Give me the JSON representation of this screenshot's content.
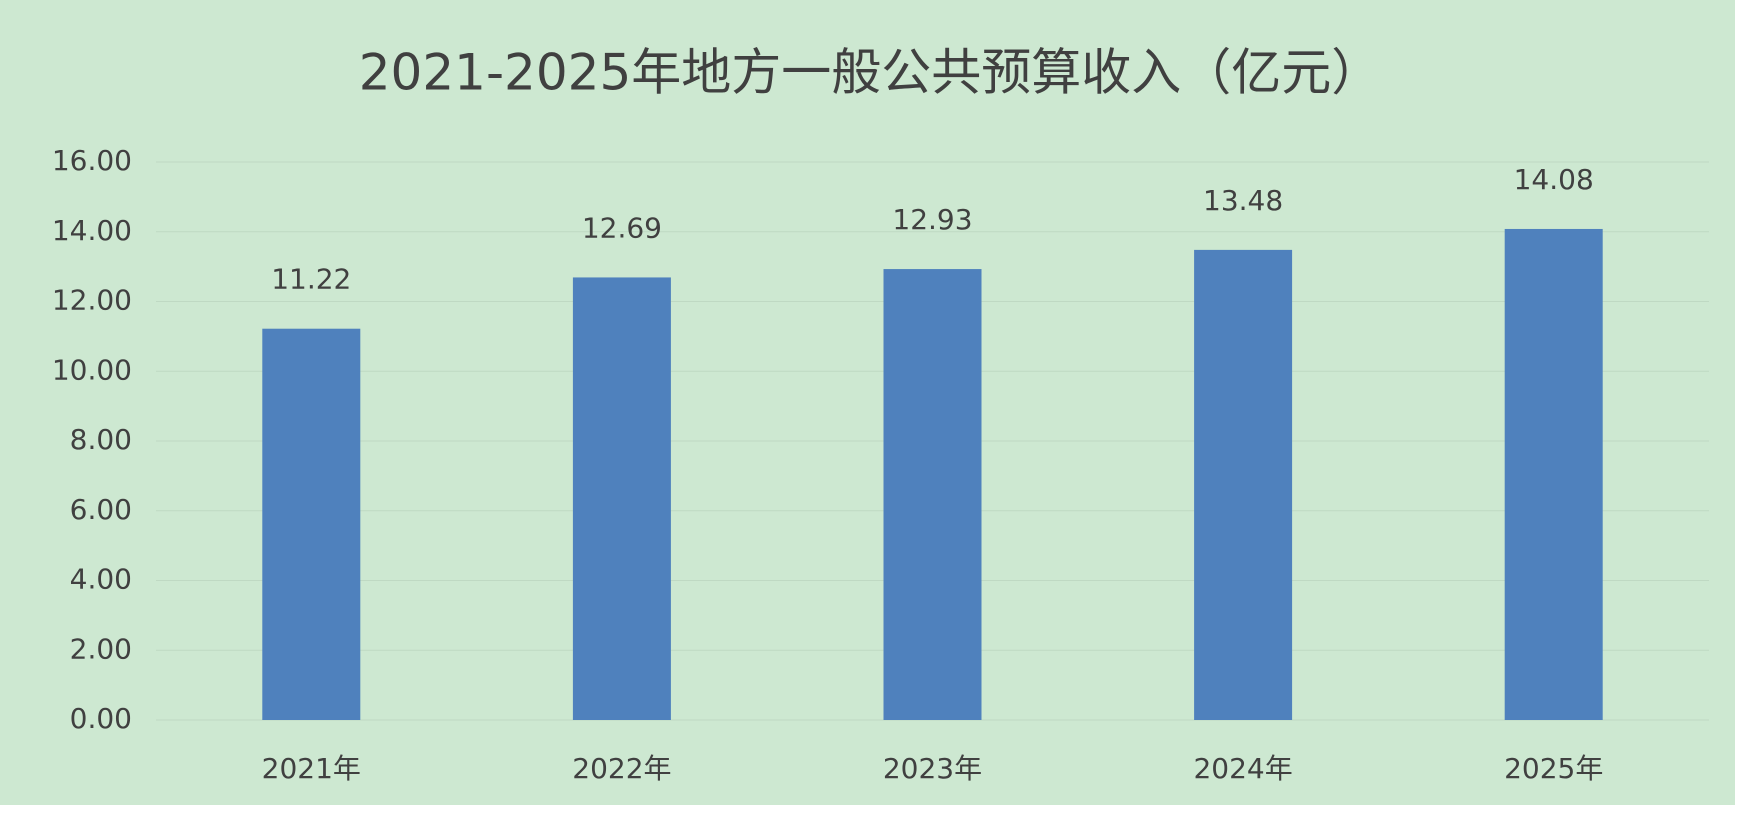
{
  "chart_data": {
    "type": "bar",
    "title": "2021-2025年地方一般公共预算收入（亿元）",
    "categories": [
      "2021年",
      "2022年",
      "2023年",
      "2024年",
      "2025年"
    ],
    "values": [
      11.22,
      12.69,
      12.93,
      13.48,
      14.08
    ],
    "color": "#4f81bd",
    "ylim": [
      0,
      16
    ],
    "yticks": [
      {
        "value": 0,
        "label": "0.00"
      },
      {
        "value": 2,
        "label": "2.00"
      },
      {
        "value": 4,
        "label": "4.00"
      },
      {
        "value": 6,
        "label": "6.00"
      },
      {
        "value": 8,
        "label": "8.00"
      },
      {
        "value": 10,
        "label": "10.00"
      },
      {
        "value": 12,
        "label": "12.00"
      },
      {
        "value": 14,
        "label": "14.00"
      },
      {
        "value": 16,
        "label": "16.00"
      }
    ],
    "grid": true
  }
}
